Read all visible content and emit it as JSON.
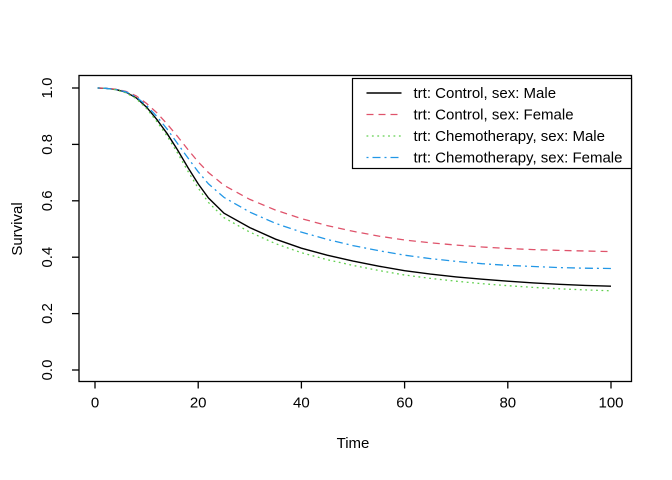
{
  "chart_data": {
    "type": "line",
    "title": "",
    "xlabel": "Time",
    "ylabel": "Survival",
    "xlim": [
      0,
      100
    ],
    "ylim": [
      0.0,
      1.0
    ],
    "x_ticks": [
      "0",
      "20",
      "40",
      "60",
      "80",
      "100"
    ],
    "y_ticks": [
      "0.0",
      "0.2",
      "0.4",
      "0.6",
      "0.8",
      "1.0"
    ],
    "grid": "off",
    "legend_position": "topright",
    "x": [
      0.5,
      2,
      4,
      6,
      8,
      10,
      12,
      14,
      16,
      18,
      20,
      22,
      25,
      30,
      35,
      40,
      45,
      50,
      55,
      60,
      65,
      70,
      75,
      80,
      85,
      90,
      95,
      100
    ],
    "series": [
      {
        "name": "trt: Control, sex: Male",
        "color": "#000000",
        "linetype": "solid",
        "values": [
          1.0,
          0.999,
          0.995,
          0.985,
          0.965,
          0.932,
          0.888,
          0.838,
          0.78,
          0.718,
          0.66,
          0.61,
          0.556,
          0.505,
          0.464,
          0.432,
          0.407,
          0.386,
          0.368,
          0.352,
          0.34,
          0.33,
          0.322,
          0.315,
          0.309,
          0.304,
          0.3,
          0.297
        ]
      },
      {
        "name": "trt: Control, sex: Female",
        "color": "#DF536B",
        "linetype": "dashed",
        "values": [
          1.0,
          0.999,
          0.996,
          0.988,
          0.972,
          0.945,
          0.912,
          0.872,
          0.828,
          0.782,
          0.738,
          0.7,
          0.655,
          0.605,
          0.567,
          0.537,
          0.512,
          0.492,
          0.475,
          0.461,
          0.451,
          0.443,
          0.436,
          0.431,
          0.427,
          0.424,
          0.422,
          0.42
        ]
      },
      {
        "name": "trt: Chemotherapy, sex: Male",
        "color": "#61D04F",
        "linetype": "dotted",
        "values": [
          1.0,
          0.999,
          0.994,
          0.983,
          0.962,
          0.927,
          0.881,
          0.829,
          0.769,
          0.705,
          0.645,
          0.594,
          0.54,
          0.489,
          0.448,
          0.416,
          0.391,
          0.371,
          0.353,
          0.337,
          0.325,
          0.315,
          0.306,
          0.299,
          0.293,
          0.288,
          0.284,
          0.281
        ]
      },
      {
        "name": "trt: Chemotherapy, sex: Female",
        "color": "#2297E6",
        "linetype": "dotdash",
        "values": [
          1.0,
          0.999,
          0.995,
          0.986,
          0.968,
          0.938,
          0.899,
          0.854,
          0.803,
          0.752,
          0.703,
          0.66,
          0.612,
          0.56,
          0.52,
          0.489,
          0.463,
          0.441,
          0.423,
          0.407,
          0.395,
          0.385,
          0.377,
          0.371,
          0.367,
          0.363,
          0.361,
          0.36
        ]
      }
    ],
    "colors": {
      "axis": "#000000",
      "background": "#ffffff"
    }
  }
}
